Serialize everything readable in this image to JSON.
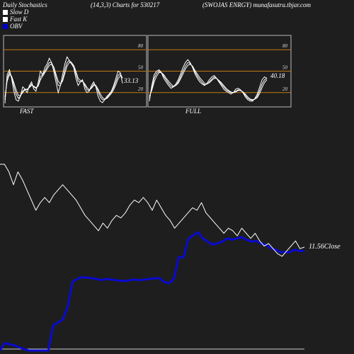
{
  "header": {
    "left": "Daily Stochastics",
    "center": "(14,3,3) Charts for 530217",
    "right": "(SWOJAS ENRGY) munafasutra.tbjar.com"
  },
  "legend": [
    {
      "label": "Slow  D",
      "swatch": "#ffffff"
    },
    {
      "label": "Fast K",
      "swatch": "#ffffff"
    },
    {
      "label": "OBV",
      "swatch": "#0000cc"
    }
  ],
  "colors": {
    "background": "#1e1e1e",
    "panel_border": "#bbbbbb",
    "level_line": "#c07a10",
    "stoch_line": "#ffffff",
    "price_line": "#ffffff",
    "obv_line": "#0a0ad0"
  },
  "chart_data": [
    {
      "type": "line",
      "panel": "FAST",
      "label": "FAST",
      "ylim": [
        0,
        100
      ],
      "levels": [
        20,
        50,
        80
      ],
      "yticks": [
        20,
        50,
        80
      ],
      "last_value_label": "33.13",
      "series": [
        {
          "values": [
            5,
            45,
            52,
            40,
            22,
            10,
            8,
            15,
            28,
            25,
            20,
            30,
            35,
            25,
            22,
            35,
            50,
            45,
            55,
            60,
            68,
            62,
            50,
            35,
            20,
            30,
            45,
            60,
            70,
            65,
            60,
            55,
            40,
            30,
            35,
            38,
            25,
            20,
            22,
            30,
            35,
            28,
            15,
            8,
            6,
            10,
            15,
            18,
            22,
            30,
            40,
            50,
            48,
            33
          ]
        },
        {
          "values": [
            10,
            40,
            48,
            42,
            30,
            18,
            12,
            15,
            22,
            25,
            24,
            28,
            32,
            28,
            26,
            30,
            42,
            45,
            50,
            56,
            62,
            62,
            55,
            42,
            30,
            30,
            38,
            52,
            62,
            65,
            62,
            57,
            46,
            36,
            35,
            36,
            30,
            24,
            23,
            27,
            32,
            30,
            22,
            14,
            10,
            10,
            13,
            17,
            21,
            27,
            35,
            44,
            47,
            40
          ]
        },
        {
          "values": [
            14,
            36,
            45,
            43,
            34,
            24,
            16,
            16,
            20,
            24,
            25,
            27,
            30,
            29,
            27,
            29,
            38,
            43,
            48,
            53,
            58,
            60,
            56,
            46,
            36,
            32,
            36,
            47,
            57,
            62,
            62,
            58,
            50,
            40,
            37,
            36,
            32,
            27,
            24,
            26,
            30,
            30,
            25,
            18,
            13,
            11,
            12,
            15,
            19,
            24,
            31,
            39,
            44,
            41
          ]
        }
      ]
    },
    {
      "type": "line",
      "panel": "FULL",
      "label": "FULL",
      "ylim": [
        0,
        100
      ],
      "levels": [
        20,
        50,
        80
      ],
      "yticks": [
        20,
        50,
        80
      ],
      "last_value_label": "40.18",
      "series": [
        {
          "values": [
            8,
            30,
            45,
            50,
            52,
            48,
            40,
            35,
            30,
            26,
            28,
            32,
            38,
            46,
            55,
            62,
            66,
            62,
            55,
            46,
            40,
            35,
            32,
            30,
            33,
            38,
            42,
            44,
            40,
            35,
            30,
            25,
            22,
            20,
            18,
            20,
            25,
            26,
            24,
            20,
            14,
            10,
            8,
            8,
            12,
            18,
            28,
            38,
            42,
            40
          ]
        },
        {
          "values": [
            12,
            26,
            40,
            47,
            50,
            48,
            43,
            38,
            33,
            29,
            28,
            30,
            35,
            42,
            50,
            57,
            62,
            61,
            56,
            49,
            43,
            38,
            34,
            31,
            32,
            35,
            39,
            42,
            40,
            36,
            32,
            28,
            24,
            22,
            20,
            20,
            22,
            24,
            23,
            21,
            16,
            12,
            10,
            9,
            11,
            15,
            23,
            32,
            38,
            40
          ]
        },
        {
          "values": [
            15,
            23,
            35,
            43,
            48,
            48,
            45,
            40,
            36,
            32,
            29,
            30,
            33,
            39,
            46,
            53,
            58,
            60,
            57,
            51,
            46,
            41,
            37,
            33,
            32,
            34,
            37,
            40,
            40,
            37,
            34,
            30,
            26,
            23,
            21,
            20,
            21,
            23,
            23,
            21,
            18,
            14,
            11,
            10,
            11,
            13,
            19,
            27,
            34,
            38
          ]
        }
      ]
    },
    {
      "type": "line",
      "panel": "price",
      "last_value_label": "11.56",
      "last_value_suffix": "Close",
      "series": [
        {
          "values": [
            14.8,
            14.8,
            14.5,
            14.0,
            14.5,
            14.2,
            13.8,
            13.4,
            13.0,
            13.3,
            13.5,
            13.3,
            13.6,
            13.8,
            14.0,
            13.8,
            13.6,
            13.4,
            13.1,
            12.8,
            12.6,
            12.4,
            12.2,
            12.5,
            12.3,
            12.6,
            12.8,
            12.7,
            12.9,
            13.2,
            13.4,
            13.3,
            13.5,
            13.3,
            13.0,
            13.4,
            13.1,
            12.8,
            12.6,
            12.3,
            12.5,
            12.7,
            12.9,
            13.1,
            13.0,
            13.3,
            12.9,
            12.7,
            12.5,
            12.3,
            12.1,
            12.3,
            12.2,
            12.0,
            12.3,
            12.1,
            11.9,
            12.1,
            11.8,
            11.6,
            11.7,
            11.5,
            11.3,
            11.2,
            11.4,
            11.6,
            11.8,
            11.5,
            11.56
          ]
        }
      ]
    },
    {
      "type": "line",
      "panel": "obv",
      "series": [
        {
          "values": [
            0,
            12,
            10,
            8,
            5,
            2,
            0,
            0,
            0,
            0,
            0,
            40,
            45,
            50,
            70,
            110,
            115,
            118,
            117,
            116,
            115,
            113,
            115,
            114,
            113,
            112,
            112,
            113,
            114,
            113,
            114,
            115,
            116,
            116,
            110,
            108,
            115,
            150,
            150,
            180,
            185,
            190,
            180,
            175,
            170,
            172,
            175,
            180,
            178,
            180,
            182,
            178,
            175,
            176,
            172,
            170,
            165,
            162,
            158,
            158,
            158,
            162,
            160,
            160
          ]
        }
      ]
    }
  ]
}
